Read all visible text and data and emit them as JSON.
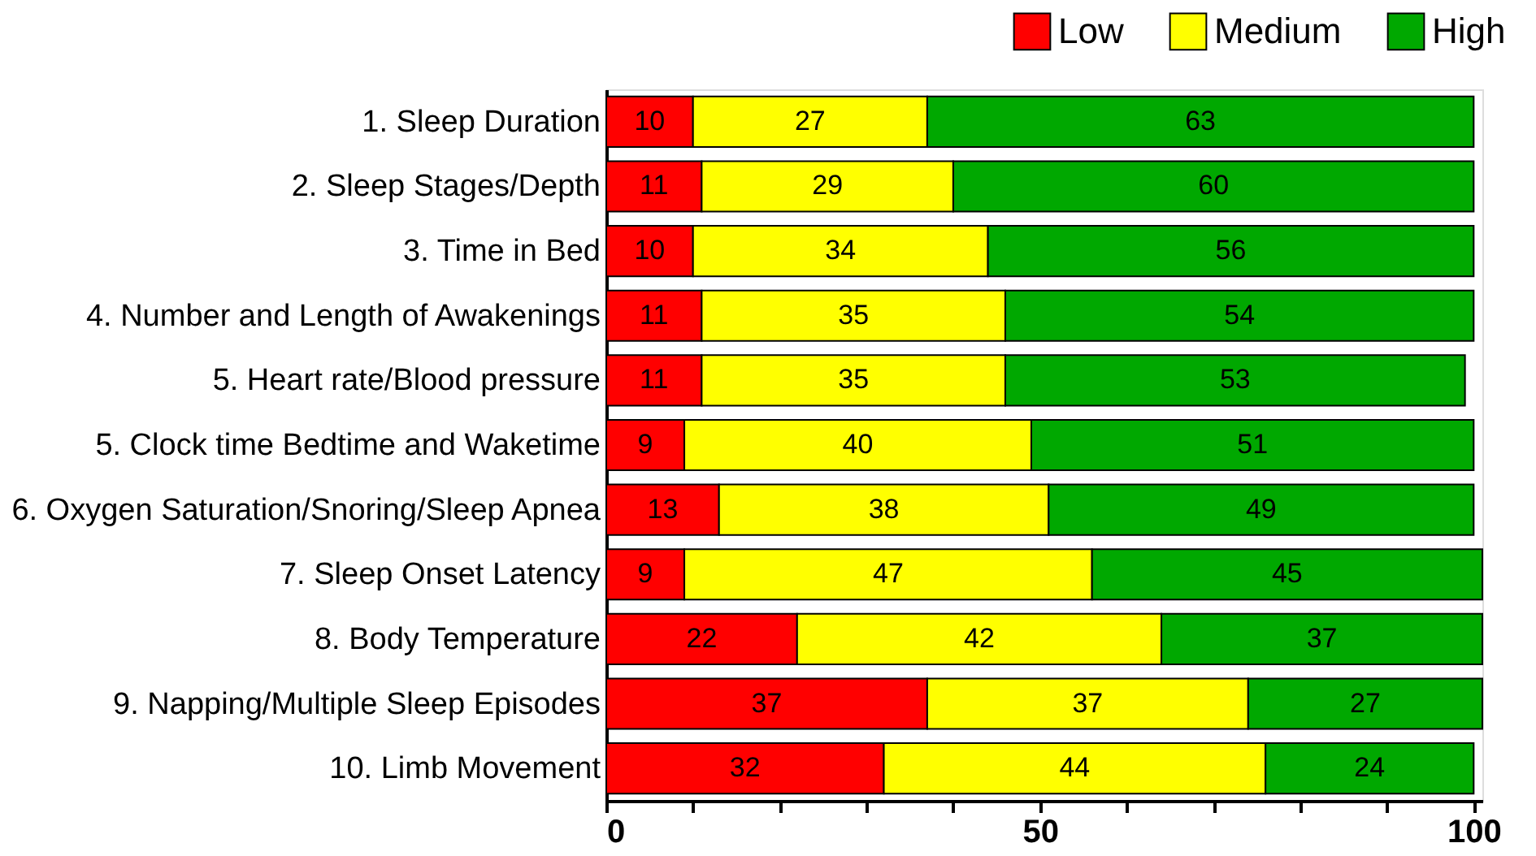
{
  "chart_data": {
    "type": "bar",
    "orientation": "horizontal",
    "stacked": true,
    "data_labels": true,
    "legend": "top right",
    "grid": false,
    "categories": [
      "1. Sleep Duration",
      "2. Sleep Stages/Depth",
      "3. Time in Bed",
      "4. Number and Length of Awakenings",
      "5. Heart rate/Blood pressure",
      "5. Clock time Bedtime and Waketime",
      "6. Oxygen Saturation/Snoring/Sleep Apnea",
      "7. Sleep Onset Latency",
      "8. Body Temperature",
      "9. Napping/Multiple Sleep Episodes",
      "10. Limb Movement"
    ],
    "series": [
      {
        "name": "Low",
        "color": "#ff0000",
        "values": [
          10,
          11,
          10,
          11,
          11,
          9,
          13,
          9,
          22,
          37,
          32
        ]
      },
      {
        "name": "Medium",
        "color": "#ffff00",
        "values": [
          27,
          29,
          34,
          35,
          35,
          40,
          38,
          47,
          42,
          37,
          44
        ]
      },
      {
        "name": "High",
        "color": "#00a800",
        "values": [
          63,
          60,
          56,
          54,
          53,
          51,
          49,
          45,
          37,
          27,
          24
        ]
      }
    ],
    "xlim": [
      0,
      101
    ],
    "xticks": [
      0,
      {
        "value": 10,
        "label": null
      },
      {
        "value": 20,
        "label": null
      },
      {
        "value": 30,
        "label": null
      },
      {
        "value": 40,
        "label": null
      },
      50,
      {
        "value": 60,
        "label": null
      },
      {
        "value": 70,
        "label": null
      },
      {
        "value": 80,
        "label": null
      },
      {
        "value": 90,
        "label": null
      },
      100
    ]
  }
}
